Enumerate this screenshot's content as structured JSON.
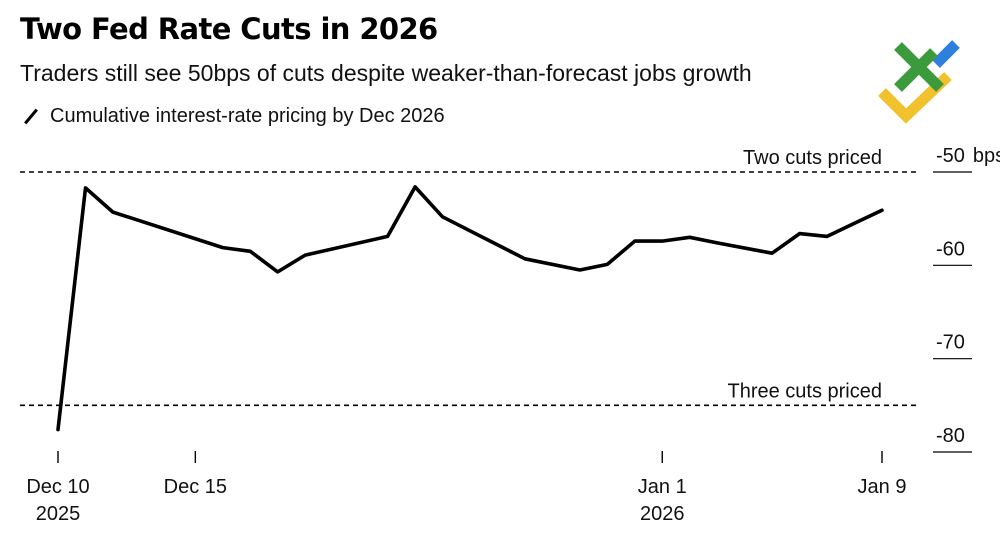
{
  "header": {
    "title": "Two Fed Rate Cuts in 2026",
    "subtitle": "Traders still see 50bps of cuts despite weaker-than-forecast jobs growth",
    "legend_label": "Cumulative interest-rate pricing by Dec 2026"
  },
  "chart_data": {
    "type": "line",
    "title": "Two Fed Rate Cuts in 2026",
    "subtitle": "Traders still see 50bps of cuts despite weaker-than-forecast jobs growth",
    "xlabel": "",
    "ylabel": "bps",
    "ylim": [
      -80,
      -50
    ],
    "xlim": [
      0,
      30
    ],
    "series": [
      {
        "name": "Cumulative interest-rate pricing by Dec 2026",
        "x": [
          0,
          1,
          2,
          6,
          7,
          8,
          9,
          12,
          13,
          14,
          17,
          19,
          20,
          21,
          22,
          23,
          24,
          26,
          27,
          28,
          29,
          30
        ],
        "values": [
          -77.6,
          -51.7,
          -54.3,
          -58.1,
          -58.5,
          -60.7,
          -58.9,
          -56.9,
          -51.6,
          -54.8,
          -59.3,
          -60.5,
          -59.9,
          -57.4,
          -57.4,
          -57.0,
          -57.6,
          -58.7,
          -56.6,
          -56.9,
          -55.5,
          -54.1
        ]
      }
    ],
    "y_ticks": [
      {
        "value": -50,
        "label": "-50"
      },
      {
        "value": -60,
        "label": "-60"
      },
      {
        "value": -70,
        "label": "-70"
      },
      {
        "value": -80,
        "label": "-80"
      }
    ],
    "y_unit": "bps",
    "x_ticks": [
      {
        "x": 0,
        "label": "Dec 10",
        "sublabel": "2025"
      },
      {
        "x": 5,
        "label": "Dec 15",
        "sublabel": ""
      },
      {
        "x": 22,
        "label": "Jan 1",
        "sublabel": "2026"
      },
      {
        "x": 30,
        "label": "Jan 9",
        "sublabel": ""
      }
    ],
    "reference_lines": [
      {
        "value": -50,
        "label": "Two cuts priced"
      },
      {
        "value": -75,
        "label": "Three cuts priced"
      }
    ],
    "grid": false,
    "line_color": "#000000"
  },
  "logo": {
    "colors": [
      "#3a9a3c",
      "#2f7fdc",
      "#f2c12e"
    ]
  }
}
